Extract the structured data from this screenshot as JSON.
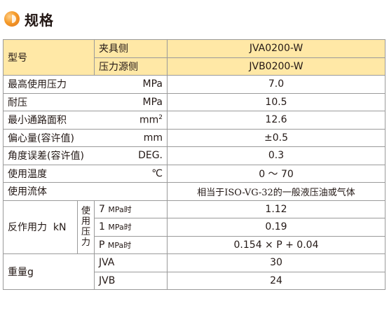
{
  "header": {
    "title": "规格"
  },
  "table": {
    "model_label": "型号",
    "clamp_side": "夹具侧",
    "clamp_model": "JVA0200-W",
    "source_side": "压力源侧",
    "source_model": "JVB0200-W",
    "rows": [
      {
        "label": "最高使用压力",
        "unit": "MPa",
        "value": "7.0"
      },
      {
        "label": "耐压",
        "unit": "MPa",
        "value": "10.5"
      },
      {
        "label": "最小通路面积",
        "unit": "mm",
        "unit_sup": "2",
        "value": "12.6"
      },
      {
        "label": "偏心量(容许值)",
        "unit": "mm",
        "value": "±0.5"
      },
      {
        "label": "角度误差(容许值)",
        "unit": "DEG.",
        "value": "0.3"
      },
      {
        "label": "使用温度",
        "unit": "℃",
        "value": "0 ～ 70"
      },
      {
        "label": "使用流体",
        "value": "相当于ISO-VG-32的一般液压油或气体"
      }
    ],
    "reaction": {
      "label": "反作用力",
      "unit": "kN",
      "pressure_chars": [
        "使",
        "用",
        "压",
        "力"
      ],
      "rows": [
        {
          "num": "7",
          "unit": "MPa",
          "suffix": "时",
          "value": "1.12"
        },
        {
          "num": "1",
          "unit": "MPa",
          "suffix": "时",
          "value": "0.19"
        },
        {
          "num": "P",
          "unit": "MPa",
          "suffix": "时",
          "value": "0.154 × P + 0.04"
        }
      ]
    },
    "weight": {
      "label": "重量g",
      "rows": [
        {
          "type": "JVA",
          "value": "30"
        },
        {
          "type": "JVB",
          "value": "24"
        }
      ]
    }
  }
}
